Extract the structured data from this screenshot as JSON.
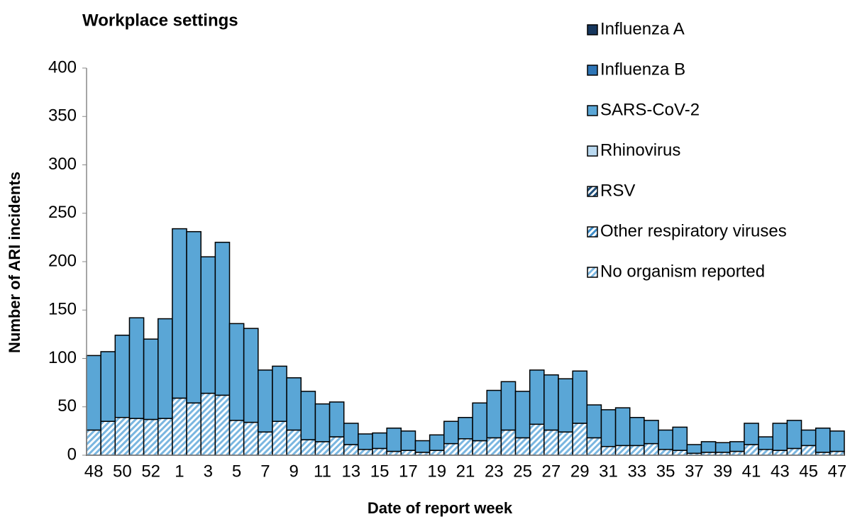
{
  "chart_data": {
    "type": "stacked_bar",
    "title": "Workplace settings",
    "x_label": "Date of report week",
    "y_label": "Number of ARI incidents",
    "categories": [
      "48",
      null,
      "50",
      null,
      "52",
      null,
      "1",
      null,
      "3",
      null,
      "5",
      null,
      "7",
      null,
      "9",
      null,
      "11",
      null,
      "13",
      null,
      "15",
      null,
      "17",
      null,
      "19",
      null,
      "21",
      null,
      "23",
      null,
      "25",
      null,
      "27",
      null,
      "29",
      null,
      "31",
      null,
      "33",
      null,
      "35",
      null,
      "37",
      null,
      "39",
      null,
      "41",
      null,
      "43",
      null,
      "45",
      null,
      "47"
    ],
    "ylim": [
      0,
      400
    ],
    "yticks": [
      0,
      50,
      100,
      150,
      200,
      250,
      300,
      350,
      400
    ],
    "grid": false,
    "legend": "right",
    "series": [
      {
        "name": "Influenza A",
        "color": "#17375e",
        "pattern": "solid",
        "values": [
          0,
          0,
          0,
          0,
          0,
          0,
          0,
          0,
          0,
          0,
          0,
          0,
          0,
          0,
          0,
          0,
          0,
          0,
          0,
          0,
          0,
          0,
          0,
          0,
          0,
          0,
          0,
          0,
          0,
          0,
          0,
          0,
          0,
          0,
          0,
          0,
          0,
          0,
          0,
          0,
          0,
          0,
          0,
          0,
          0,
          0,
          0,
          0,
          0,
          0,
          0,
          0,
          0
        ]
      },
      {
        "name": "Influenza B",
        "color": "#2e75b6",
        "pattern": "solid",
        "values": [
          0,
          0,
          0,
          0,
          0,
          0,
          0,
          0,
          0,
          0,
          0,
          0,
          0,
          0,
          0,
          0,
          0,
          0,
          0,
          0,
          0,
          0,
          0,
          0,
          0,
          0,
          0,
          0,
          0,
          0,
          0,
          0,
          0,
          0,
          0,
          0,
          0,
          0,
          0,
          0,
          0,
          0,
          0,
          0,
          0,
          0,
          0,
          0,
          0,
          0,
          0,
          0,
          0
        ]
      },
      {
        "name": "SARS-CoV-2",
        "color": "#5aa6d6",
        "pattern": "solid",
        "values": [
          77,
          72,
          85,
          104,
          83,
          103,
          175,
          177,
          141,
          158,
          100,
          97,
          64,
          57,
          54,
          50,
          39,
          36,
          22,
          16,
          16,
          24,
          20,
          12,
          16,
          23,
          22,
          39,
          49,
          50,
          48,
          56,
          57,
          55,
          54,
          34,
          38,
          39,
          29,
          24,
          20,
          24,
          9,
          11,
          10,
          10,
          22,
          13,
          28,
          29,
          16,
          25,
          21
        ]
      },
      {
        "name": "Rhinovirus",
        "color": "#b9d8ef",
        "pattern": "solid",
        "values": [
          0,
          0,
          0,
          0,
          0,
          0,
          0,
          0,
          0,
          0,
          0,
          0,
          0,
          0,
          0,
          0,
          0,
          0,
          0,
          0,
          0,
          0,
          0,
          0,
          0,
          0,
          0,
          0,
          0,
          0,
          0,
          0,
          0,
          0,
          0,
          0,
          0,
          0,
          0,
          0,
          0,
          0,
          0,
          0,
          0,
          0,
          0,
          0,
          0,
          0,
          0,
          0,
          0
        ]
      },
      {
        "name": "RSV",
        "color": "#1f4e79",
        "pattern": "hatch",
        "values": [
          0,
          0,
          0,
          0,
          0,
          0,
          0,
          0,
          0,
          0,
          0,
          0,
          0,
          0,
          0,
          0,
          0,
          0,
          0,
          0,
          0,
          0,
          0,
          0,
          0,
          0,
          0,
          0,
          0,
          0,
          0,
          0,
          0,
          0,
          0,
          0,
          0,
          0,
          0,
          0,
          0,
          0,
          0,
          0,
          0,
          0,
          0,
          0,
          0,
          0,
          0,
          0,
          0
        ]
      },
      {
        "name": "Other respiratory viruses",
        "color": "#3d8cc8",
        "pattern": "hatch",
        "values": [
          0,
          0,
          0,
          0,
          0,
          0,
          0,
          0,
          0,
          0,
          0,
          0,
          0,
          0,
          0,
          0,
          0,
          0,
          0,
          0,
          0,
          0,
          0,
          0,
          0,
          0,
          0,
          0,
          0,
          0,
          0,
          0,
          0,
          0,
          0,
          0,
          0,
          0,
          0,
          0,
          0,
          0,
          0,
          0,
          0,
          0,
          0,
          0,
          0,
          0,
          0,
          0,
          0
        ]
      },
      {
        "name": "No organism reported",
        "color": "#7ab6e0",
        "pattern": "hatch",
        "values": [
          26,
          35,
          39,
          38,
          37,
          38,
          59,
          54,
          64,
          62,
          36,
          34,
          24,
          35,
          26,
          16,
          14,
          19,
          11,
          6,
          7,
          4,
          5,
          3,
          5,
          12,
          17,
          15,
          18,
          26,
          18,
          32,
          26,
          24,
          33,
          18,
          9,
          10,
          10,
          12,
          6,
          5,
          2,
          3,
          3,
          4,
          11,
          6,
          5,
          7,
          10,
          3,
          4
        ]
      }
    ]
  }
}
